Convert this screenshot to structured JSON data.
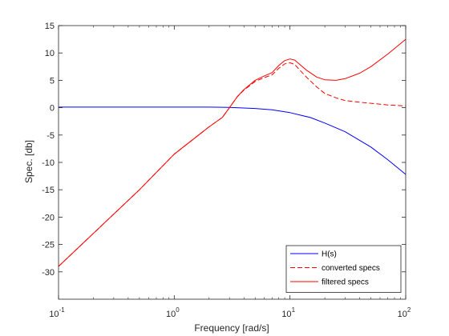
{
  "chart_data": {
    "type": "line",
    "title": "",
    "xlabel": "Frequency [rad/s]",
    "ylabel": "Spec. [db]",
    "xscale": "log",
    "xlim": [
      0.1,
      100
    ],
    "ylim": [
      -35,
      15
    ],
    "grid": false,
    "legend_position": "bottom-right",
    "x_ticks": [
      {
        "value": 0.1,
        "base": "10",
        "exp": "-1"
      },
      {
        "value": 1,
        "base": "10",
        "exp": "0"
      },
      {
        "value": 10,
        "base": "10",
        "exp": "1"
      },
      {
        "value": 100,
        "base": "10",
        "exp": "2"
      }
    ],
    "y_ticks": [
      {
        "value": 15,
        "label": "15"
      },
      {
        "value": 10,
        "label": "10"
      },
      {
        "value": 5,
        "label": "5"
      },
      {
        "value": 0,
        "label": "0"
      },
      {
        "value": -5,
        "label": "-5"
      },
      {
        "value": -10,
        "label": "-10"
      },
      {
        "value": -15,
        "label": "-15"
      },
      {
        "value": -20,
        "label": "-20"
      },
      {
        "value": -25,
        "label": "-25"
      },
      {
        "value": -30,
        "label": "-30"
      }
    ],
    "series": [
      {
        "name": "H(s)",
        "color": "#0000ff",
        "dash": "solid",
        "x": [
          0.1,
          0.5,
          1,
          2,
          3,
          5,
          7,
          10,
          15,
          20,
          30,
          50,
          70,
          100
        ],
        "y": [
          0.1,
          0.1,
          0.1,
          0.1,
          0.05,
          -0.15,
          -0.4,
          -0.9,
          -1.8,
          -2.8,
          -4.4,
          -7.2,
          -9.5,
          -12.2
        ]
      },
      {
        "name": "converted specs",
        "color": "#ff0000",
        "dash": "dashed",
        "x": [
          0.1,
          0.5,
          1,
          2,
          2.6,
          3,
          3.5,
          4,
          5,
          6,
          7,
          8,
          9,
          10,
          11,
          12,
          14,
          17,
          20,
          25,
          30,
          40,
          50,
          70,
          100
        ],
        "y": [
          -29,
          -15,
          -8.5,
          -3.5,
          -1.8,
          0,
          2,
          3.2,
          4.8,
          5.5,
          6,
          7.2,
          8,
          8.2,
          7.9,
          7,
          5.5,
          3.8,
          2.6,
          1.8,
          1.3,
          1.0,
          0.8,
          0.5,
          0.3
        ]
      },
      {
        "name": "filtered specs",
        "color": "#ff0000",
        "dash": "solid",
        "x": [
          0.1,
          0.5,
          1,
          2,
          2.6,
          3,
          3.5,
          4,
          5,
          6,
          7,
          8,
          9,
          10,
          11,
          12,
          14,
          17,
          20,
          25,
          30,
          40,
          50,
          70,
          100
        ],
        "y": [
          -29,
          -15,
          -8.5,
          -3.5,
          -1.8,
          0,
          2,
          3.3,
          5,
          5.8,
          6.4,
          7.7,
          8.6,
          8.9,
          8.7,
          8.0,
          6.8,
          5.6,
          5.1,
          5.0,
          5.3,
          6.3,
          7.5,
          9.8,
          12.5
        ]
      }
    ]
  }
}
